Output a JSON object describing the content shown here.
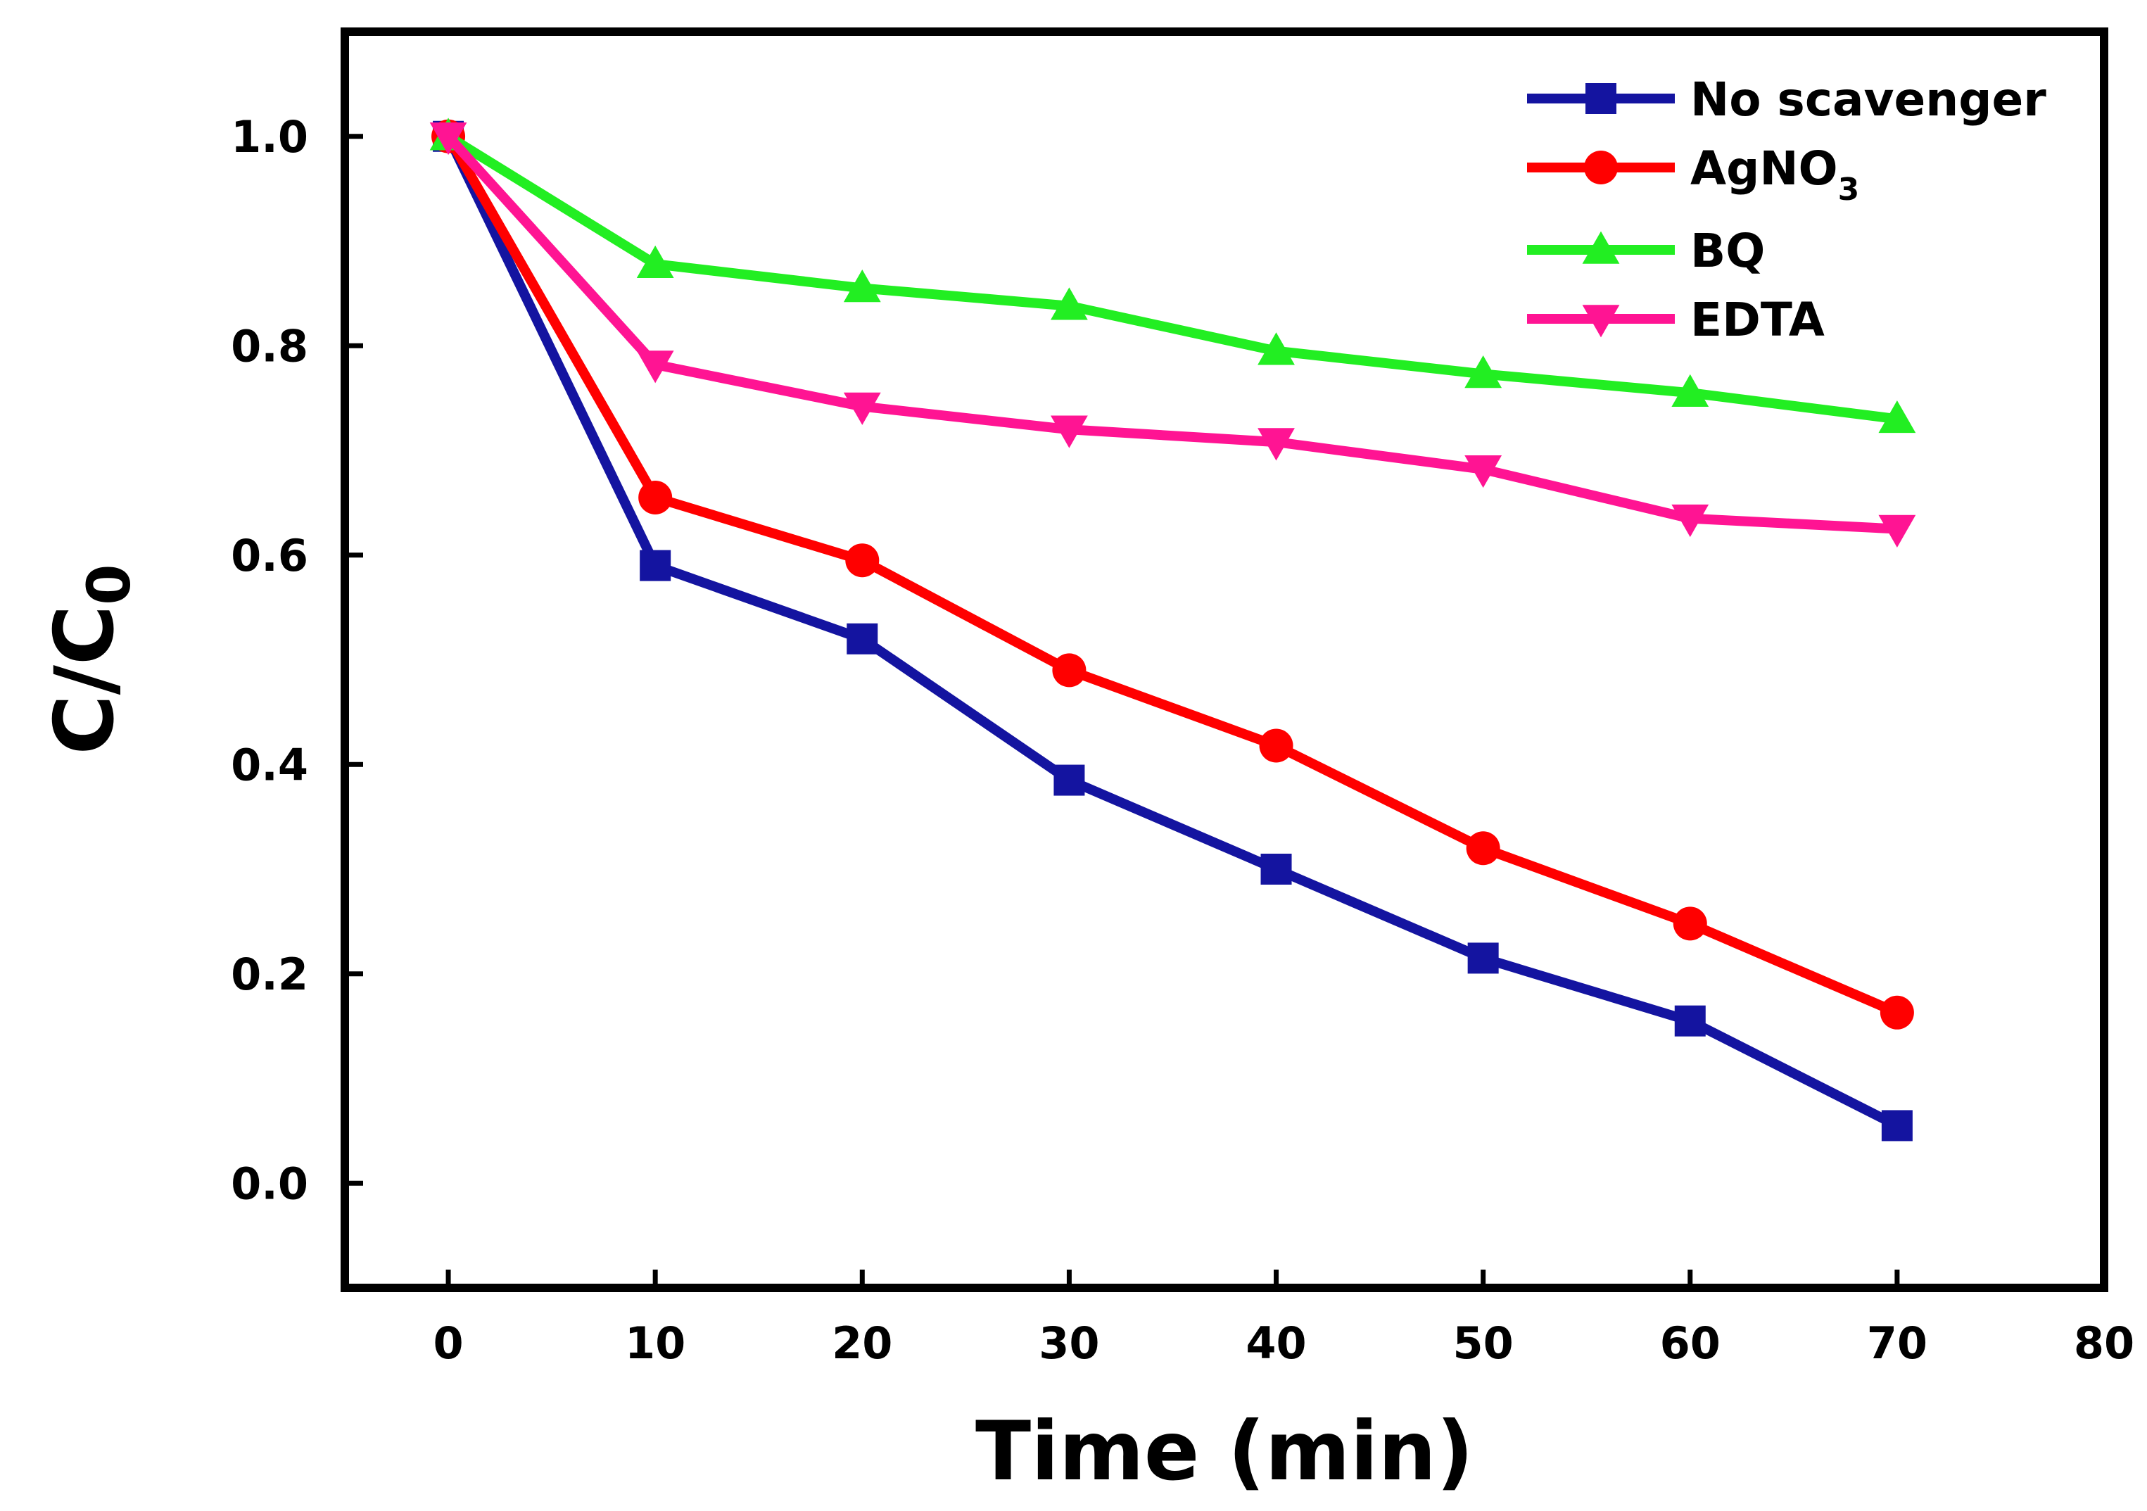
{
  "chart_data": {
    "type": "line",
    "title": "",
    "xlabel": "Time (min)",
    "ylabel": {
      "main": "C/C",
      "sub": "0"
    },
    "xlim": [
      -5,
      80
    ],
    "ylim": [
      -0.1,
      1.1
    ],
    "xticks": [
      0,
      10,
      20,
      30,
      40,
      50,
      60,
      70,
      80
    ],
    "yticks": [
      0.0,
      0.2,
      0.4,
      0.6,
      0.8,
      1.0
    ],
    "x": [
      0,
      10,
      20,
      30,
      40,
      50,
      60,
      70
    ],
    "legend_position": "top-right",
    "grid": false,
    "series": [
      {
        "name": "No scavenger",
        "label_main": "No scavenger",
        "label_sub": "",
        "marker": "square",
        "color": "#1414a0",
        "values": [
          1.0,
          0.59,
          0.52,
          0.385,
          0.3,
          0.215,
          0.155,
          0.055
        ]
      },
      {
        "name": "AgNO3",
        "label_main": "AgNO",
        "label_sub": "3",
        "marker": "circle",
        "color": "#ff0000",
        "values": [
          1.0,
          0.655,
          0.595,
          0.49,
          0.418,
          0.32,
          0.248,
          0.163
        ]
      },
      {
        "name": "BQ",
        "label_main": "BQ",
        "label_sub": "",
        "marker": "triangle-up",
        "color": "#22ee22",
        "values": [
          1.0,
          0.878,
          0.855,
          0.838,
          0.795,
          0.773,
          0.755,
          0.73
        ]
      },
      {
        "name": "EDTA",
        "label_main": "EDTA",
        "label_sub": "",
        "marker": "triangle-down",
        "color": "#ff1493",
        "values": [
          1.0,
          0.782,
          0.742,
          0.72,
          0.708,
          0.682,
          0.635,
          0.625
        ]
      }
    ]
  }
}
